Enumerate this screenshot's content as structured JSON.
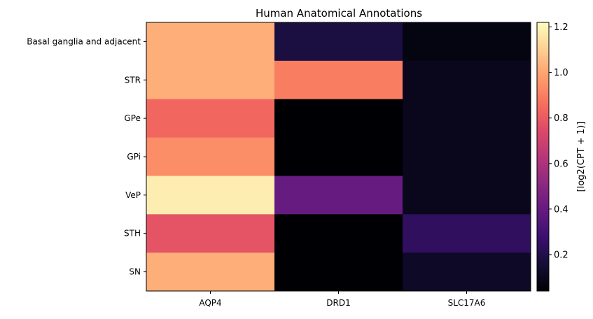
{
  "chart_data": {
    "type": "heatmap",
    "title": "Human Anatomical Annotations",
    "x_categories": [
      "AQP4",
      "DRD1",
      "SLC17A6"
    ],
    "y_categories": [
      "Basal ganglia and adjacent",
      "STR",
      "GPe",
      "GPi",
      "VeP",
      "STH",
      "SN"
    ],
    "values": [
      [
        1.02,
        0.18,
        0.07
      ],
      [
        1.02,
        0.9,
        0.1
      ],
      [
        0.84,
        0.04,
        0.1
      ],
      [
        0.94,
        0.04,
        0.1
      ],
      [
        1.18,
        0.4,
        0.1
      ],
      [
        0.78,
        0.04,
        0.24
      ],
      [
        1.02,
        0.04,
        0.12
      ]
    ],
    "colormap": "magma",
    "colorbar": {
      "label": "[log2(CPT + 1)]",
      "range": [
        0.04,
        1.22
      ],
      "ticks": [
        {
          "value": 0.2,
          "label": "0.2"
        },
        {
          "value": 0.4,
          "label": "0.4"
        },
        {
          "value": 0.6,
          "label": "0.6"
        },
        {
          "value": 0.8,
          "label": "0.8"
        },
        {
          "value": 1.0,
          "label": "1.0"
        },
        {
          "value": 1.2,
          "label": "1.2"
        }
      ]
    },
    "grid": false
  }
}
